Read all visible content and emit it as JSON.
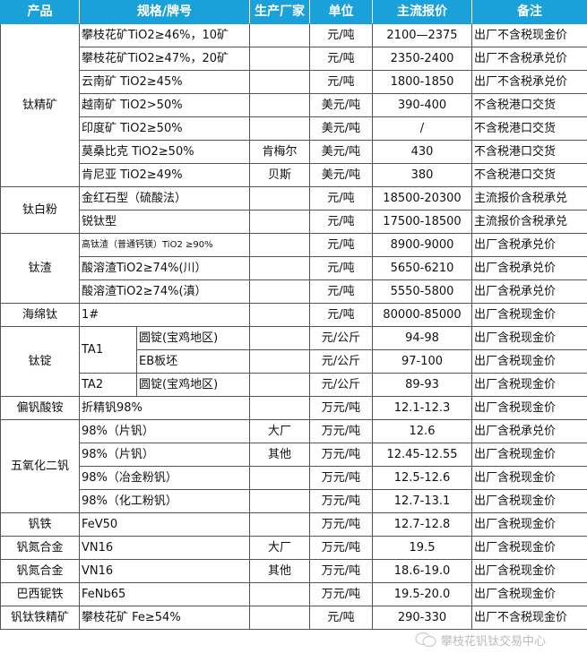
{
  "colors": {
    "header_bg": "#1ba1da",
    "header_text": "#ffffff",
    "border": "#555555"
  },
  "headers": [
    "产品",
    "规格/牌号",
    "生产厂家",
    "单位",
    "主流报价",
    "备注"
  ],
  "groups": [
    {
      "product": "钛精矿",
      "items": [
        {
          "spec": "攀枝花矿TiO2≥46%，10矿",
          "maker": "",
          "unit": "元/吨",
          "price": "2100—2375",
          "note": "出厂不含税现金价"
        },
        {
          "spec": "攀枝花矿TiO2≥47%，20矿",
          "maker": "",
          "unit": "元/吨",
          "price": "2350-2400",
          "note": "出厂不含税承兑价"
        },
        {
          "spec": "云南矿 TiO2≥45%",
          "maker": "",
          "unit": "元/吨",
          "price": "1800-1850",
          "note": "出厂不含税承兑价"
        },
        {
          "spec": "越南矿 TiO2>50%",
          "maker": "",
          "unit": "美元/吨",
          "price": "390-400",
          "note": "不含税港口交货"
        },
        {
          "spec": "印度矿 TiO2≥50%",
          "maker": "",
          "unit": "美元/吨",
          "price": "/",
          "note": "不含税港口交货"
        },
        {
          "spec": "莫桑比克 TiO2≥50%",
          "maker": "肯梅尔",
          "unit": "美元/吨",
          "price": "430",
          "note": "不含税港口交货"
        },
        {
          "spec": "肯尼亚 TiO2≥49%",
          "maker": "贝斯",
          "unit": "美元/吨",
          "price": "380",
          "note": "不含税港口交货"
        }
      ]
    },
    {
      "product": "钛白粉",
      "items": [
        {
          "spec": "金红石型（硫酸法）",
          "maker": "",
          "unit": "元/吨",
          "price": "18500-20300",
          "note": "主流报价含税承兑"
        },
        {
          "spec": "锐钛型",
          "maker": "",
          "unit": "元/吨",
          "price": "17500-18500",
          "note": "主流报价含税承兑"
        }
      ]
    },
    {
      "product": "钛渣",
      "items": [
        {
          "spec": "高钛渣（普通钙镁）TiO2 ≥90%",
          "maker": "",
          "unit": "元/吨",
          "price": "8900-9000",
          "note": "出厂含税承兑价",
          "small": true
        },
        {
          "spec": "酸溶渣TiO2≥74%(川）",
          "maker": "",
          "unit": "元/吨",
          "price": "5650-6210",
          "note": "出厂含税承兑价"
        },
        {
          "spec": "酸溶渣TiO2≥74%(滇）",
          "maker": "",
          "unit": "元/吨",
          "price": "5550-5800",
          "note": "出厂含税承兑价"
        }
      ]
    },
    {
      "product": "海绵钛",
      "items": [
        {
          "spec": "1#",
          "maker": "",
          "unit": "元/吨",
          "price": "80000-85000",
          "note": "出厂含税现金价"
        }
      ]
    },
    {
      "product": "钛锭",
      "grades": [
        {
          "grade": "TA1",
          "items": [
            {
              "spec": "圆锭(宝鸡地区)",
              "unit": "元/公斤",
              "price": "94-98",
              "note": "出厂含税现金价"
            },
            {
              "spec": "EB板坯",
              "unit": "元/公斤",
              "price": "97-100",
              "note": "出厂含税现金价"
            }
          ]
        },
        {
          "grade": "TA2",
          "items": [
            {
              "spec": "圆锭(宝鸡地区)",
              "unit": "元/公斤",
              "price": "89-93",
              "note": "出厂含税现金价"
            }
          ]
        }
      ]
    },
    {
      "product": "偏钒酸铵",
      "items": [
        {
          "spec": "折精钒98%",
          "maker": "",
          "unit": "万元/吨",
          "price": "12.1-12.3",
          "note": "出厂含税现金价"
        }
      ]
    },
    {
      "product": "五氧化二钒",
      "items": [
        {
          "spec": "98%（片钒）",
          "maker": "大厂",
          "unit": "万元/吨",
          "price": "12.6",
          "note": "出厂含税承兑价"
        },
        {
          "spec": "98%（片钒）",
          "maker": "其他",
          "unit": "万元/吨",
          "price": "12.45-12.55",
          "note": "出厂含税现金价"
        },
        {
          "spec": "98%（冶金粉钒）",
          "maker": "",
          "unit": "万元/吨",
          "price": "12.5-12.6",
          "note": "出厂含税现金价"
        },
        {
          "spec": "98%（化工粉钒）",
          "maker": "",
          "unit": "万元/吨",
          "price": "12.7-13.1",
          "note": "出厂含税现金价"
        }
      ]
    },
    {
      "product": "钒铁",
      "items": [
        {
          "spec": "FeV50",
          "maker": "",
          "unit": "万元/吨",
          "price": "12.7-12.8",
          "note": "出厂含税现金价"
        }
      ]
    },
    {
      "product": "钒氮合金",
      "items": [
        {
          "spec": "VN16",
          "maker": "大厂",
          "unit": "万元/吨",
          "price": "19.5",
          "note": "出厂含税现金价"
        }
      ]
    },
    {
      "product": "钒氮合金",
      "items": [
        {
          "spec": "VN16",
          "maker": "其他",
          "unit": "万元/吨",
          "price": "18.6-19.0",
          "note": "出厂含税现金价"
        }
      ]
    },
    {
      "product": "巴西铌铁",
      "items": [
        {
          "spec": "FeNb65",
          "maker": "",
          "unit": "万元/吨",
          "price": "19.5-20.0",
          "note": "出厂含税现金价"
        }
      ]
    },
    {
      "product": "钒钛铁精矿",
      "items": [
        {
          "spec": "攀枝花矿 Fe≥54%",
          "maker": "",
          "unit": "元/吨",
          "price": "290-330",
          "note": "出厂不含税现金价"
        }
      ]
    }
  ],
  "watermark": {
    "text": "攀枝花钒钛交易中心",
    "icon": "wechat-icon"
  }
}
